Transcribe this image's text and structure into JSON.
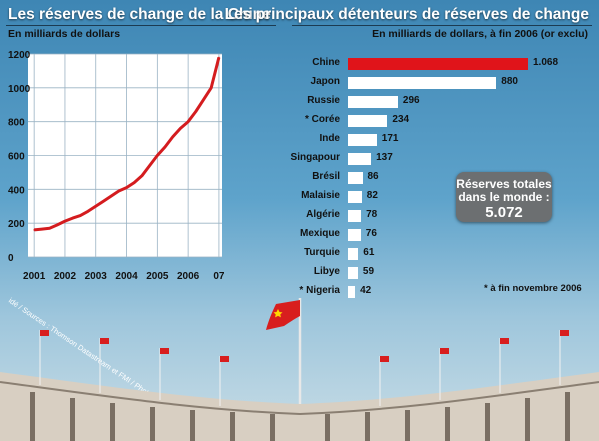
{
  "left_panel": {
    "title": "Les réserves de change de la Chine",
    "subtitle": "En milliards de dollars"
  },
  "right_panel": {
    "title": "Les principaux détenteurs de réserves de change",
    "subtitle": "En milliards de dollars, à fin 2006 (or exclu)"
  },
  "total_box": {
    "line1": "Réserves totales",
    "line2": "dans le monde :",
    "value": "5.072"
  },
  "footnote": "* à fin novembre 2006",
  "credit": "idé / Sources : Thomson Datastream et FMI / Photo : Maxppp",
  "colors": {
    "line": "#d41c1f",
    "highlight_bar": "#e0141a",
    "bar": "#ffffff",
    "box": "#6c6f71"
  },
  "chart_data": [
    {
      "type": "line",
      "title": "Les réserves de change de la Chine",
      "ylabel": "En milliards de dollars",
      "ylim": [
        0,
        1200
      ],
      "yticks": [
        "0",
        "200",
        "400",
        "600",
        "800",
        "1000",
        "1200"
      ],
      "xlim": [
        2000.8,
        2007.1
      ],
      "xticks": [
        "2001",
        "2002",
        "2003",
        "2004",
        "2005",
        "2006",
        "07"
      ],
      "grid": true,
      "series": [
        {
          "x": [
            2001.0,
            2001.25,
            2001.5,
            2001.75,
            2002.0,
            2002.25,
            2002.5,
            2002.75,
            2003.0,
            2003.25,
            2003.5,
            2003.75,
            2004.0,
            2004.25,
            2004.5,
            2004.75,
            2005.0,
            2005.25,
            2005.5,
            2005.75,
            2006.0,
            2006.25,
            2006.5,
            2006.75,
            2007.0
          ],
          "values": [
            160,
            165,
            170,
            190,
            212,
            230,
            245,
            270,
            300,
            330,
            360,
            390,
            410,
            440,
            480,
            540,
            600,
            650,
            710,
            760,
            800,
            860,
            930,
            1000,
            1180
          ]
        }
      ]
    },
    {
      "type": "bar",
      "title": "Les principaux détenteurs de réserves de change",
      "categories": [
        "Chine",
        "Japon",
        "Russie",
        "* Corée",
        "Inde",
        "Singapour",
        "Brésil",
        "Malaisie",
        "Algérie",
        "Mexique",
        "Turquie",
        "Libye",
        "* Nigeria"
      ],
      "values": [
        1068,
        880,
        296,
        234,
        171,
        137,
        86,
        82,
        78,
        76,
        61,
        59,
        42
      ],
      "value_labels": [
        "1.068",
        "880",
        "296",
        "234",
        "171",
        "137",
        "86",
        "82",
        "78",
        "76",
        "61",
        "59",
        "42"
      ],
      "highlight": "Chine"
    }
  ]
}
